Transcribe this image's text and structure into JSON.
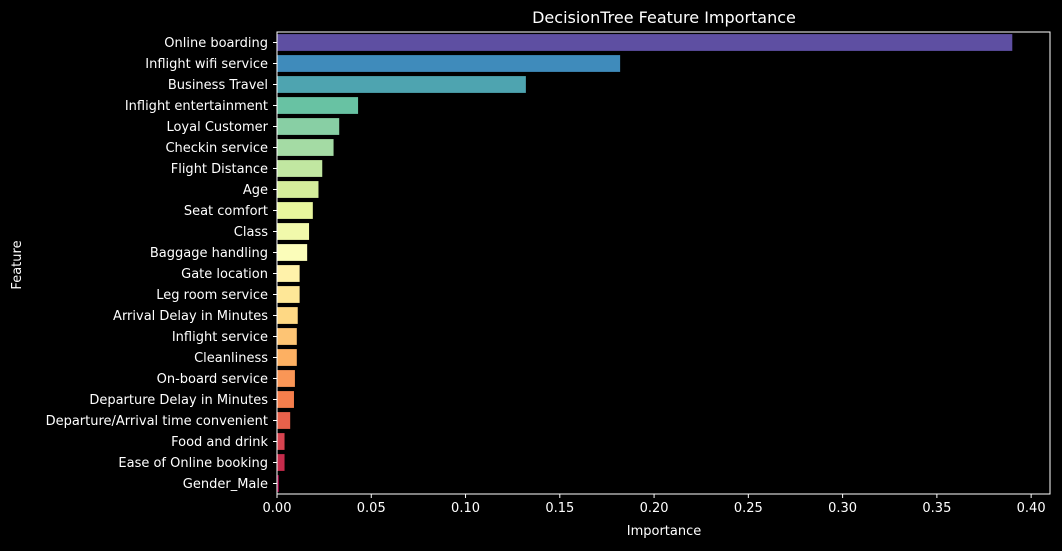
{
  "chart_data": {
    "type": "bar",
    "orientation": "horizontal",
    "title": "DecisionTree Feature Importance",
    "xlabel": "Importance",
    "ylabel": "Feature",
    "xlim": [
      0,
      0.41
    ],
    "xticks": [
      0.0,
      0.05,
      0.1,
      0.15,
      0.2,
      0.25,
      0.3,
      0.35,
      0.4
    ],
    "xtick_labels": [
      "0.00",
      "0.05",
      "0.10",
      "0.15",
      "0.20",
      "0.25",
      "0.30",
      "0.35",
      "0.40"
    ],
    "grid": false,
    "legend": "none",
    "categories": [
      "Online boarding",
      "Inflight wifi service",
      "Business Travel",
      "Inflight entertainment",
      "Loyal Customer",
      "Checkin service",
      "Flight Distance",
      "Age",
      "Seat comfort",
      "Class",
      "Baggage handling",
      "Gate location",
      "Leg room service",
      "Arrival Delay in Minutes",
      "Inflight service",
      "Cleanliness",
      "On-board service",
      "Departure Delay in Minutes",
      "Departure/Arrival time convenient",
      "Food and drink",
      "Ease of Online booking",
      "Gender_Male"
    ],
    "values": [
      0.39,
      0.182,
      0.132,
      0.043,
      0.033,
      0.03,
      0.024,
      0.022,
      0.019,
      0.017,
      0.016,
      0.012,
      0.012,
      0.011,
      0.0105,
      0.0105,
      0.0095,
      0.009,
      0.007,
      0.004,
      0.004,
      0.001
    ],
    "colors": [
      "#5e4fa2",
      "#3f8bbb",
      "#4ea4b0",
      "#68c2a3",
      "#88cfa4",
      "#a4dba4",
      "#c1e7a1",
      "#d5ee9b",
      "#e8f69d",
      "#f1f9ab",
      "#fbfdba",
      "#fff2aa",
      "#fee797",
      "#fed884",
      "#fdc474",
      "#fdb062",
      "#fa9656",
      "#f57e4c",
      "#e8614b",
      "#d7434f",
      "#c62b4b",
      "#9e0142"
    ]
  }
}
